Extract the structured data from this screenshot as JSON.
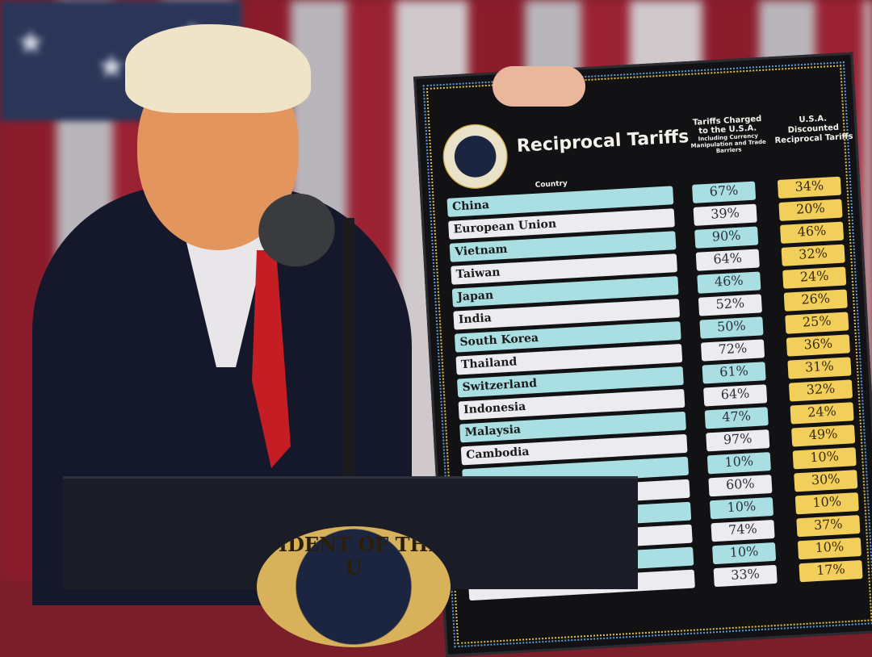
{
  "board": {
    "title": "Reciprocal Tariffs",
    "seal_text": "SEAL OF THE PRESIDENT OF THE UNITED STATES",
    "col_country": "Country",
    "col_charged": "Tariffs Charged to the U.S.A.",
    "col_charged_note": "Including Currency Manipulation and Trade Barriers",
    "col_reciprocal": "U.S.A. Discounted Reciprocal Tariffs",
    "rows": [
      {
        "country": "China",
        "charged": "67%",
        "reciprocal": "34%"
      },
      {
        "country": "European Union",
        "charged": "39%",
        "reciprocal": "20%"
      },
      {
        "country": "Vietnam",
        "charged": "90%",
        "reciprocal": "46%"
      },
      {
        "country": "Taiwan",
        "charged": "64%",
        "reciprocal": "32%"
      },
      {
        "country": "Japan",
        "charged": "46%",
        "reciprocal": "24%"
      },
      {
        "country": "India",
        "charged": "52%",
        "reciprocal": "26%"
      },
      {
        "country": "South Korea",
        "charged": "50%",
        "reciprocal": "25%"
      },
      {
        "country": "Thailand",
        "charged": "72%",
        "reciprocal": "36%"
      },
      {
        "country": "Switzerland",
        "charged": "61%",
        "reciprocal": "31%"
      },
      {
        "country": "Indonesia",
        "charged": "64%",
        "reciprocal": "32%"
      },
      {
        "country": "Malaysia",
        "charged": "47%",
        "reciprocal": "24%"
      },
      {
        "country": "Cambodia",
        "charged": "97%",
        "reciprocal": "49%"
      },
      {
        "country": "",
        "charged": "10%",
        "reciprocal": "10%"
      },
      {
        "country": "",
        "charged": "60%",
        "reciprocal": "30%"
      },
      {
        "country": "",
        "charged": "10%",
        "reciprocal": "10%"
      },
      {
        "country": "",
        "charged": "74%",
        "reciprocal": "37%"
      },
      {
        "country": "",
        "charged": "10%",
        "reciprocal": "10%"
      },
      {
        "country": "",
        "charged": "33%",
        "reciprocal": "17%"
      }
    ]
  },
  "podium": {
    "seal_text": "SIDENT OF THE U"
  },
  "colors": {
    "board": "#121214",
    "teal": "#a9dfe3",
    "yellow": "#f1cf5a",
    "tie": "#c41d24"
  }
}
